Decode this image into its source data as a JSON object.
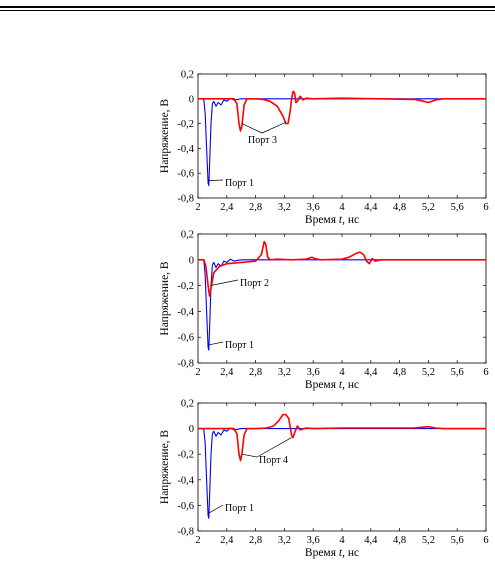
{
  "chart_data": [
    {
      "type": "line",
      "xlabel_prefix": "Время ",
      "xlabel_var": "t",
      "xlabel_suffix": ", нс",
      "ylabel": "Напряжение, В",
      "xlim": [
        2,
        6
      ],
      "ylim": [
        -0.8,
        0.2
      ],
      "xticks": [
        "2",
        "2,4",
        "2,8",
        "3,2",
        "3,6",
        "4",
        "4,4",
        "4,8",
        "5,2",
        "5,6",
        "6"
      ],
      "yticks": [
        "0,2",
        "0",
        "-0,2",
        "-0,4",
        "-0,6",
        "-0,8"
      ],
      "series": [
        {
          "name": "Порт 1",
          "color": "#0000ff",
          "points": [
            [
              2,
              0
            ],
            [
              2.05,
              0
            ],
            [
              2.08,
              -0.005
            ],
            [
              2.1,
              -0.12
            ],
            [
              2.12,
              -0.4
            ],
            [
              2.14,
              -0.68
            ],
            [
              2.15,
              -0.7
            ],
            [
              2.16,
              -0.55
            ],
            [
              2.18,
              -0.2
            ],
            [
              2.2,
              -0.04
            ],
            [
              2.22,
              -0.02
            ],
            [
              2.25,
              -0.06
            ],
            [
              2.28,
              -0.03
            ],
            [
              2.32,
              -0.05
            ],
            [
              2.36,
              -0.01
            ],
            [
              2.4,
              -0.02
            ],
            [
              2.45,
              0.005
            ],
            [
              2.5,
              -0.01
            ],
            [
              2.6,
              0
            ],
            [
              3,
              0
            ],
            [
              4,
              0
            ],
            [
              5,
              0
            ],
            [
              6,
              0
            ]
          ]
        },
        {
          "name": "Порт 3",
          "color": "#ff0000",
          "points": [
            [
              2,
              0
            ],
            [
              2.5,
              0
            ],
            [
              2.54,
              -0.04
            ],
            [
              2.57,
              -0.2
            ],
            [
              2.59,
              -0.26
            ],
            [
              2.61,
              -0.22
            ],
            [
              2.64,
              -0.05
            ],
            [
              2.68,
              0
            ],
            [
              2.8,
              0
            ],
            [
              2.9,
              -0.005
            ],
            [
              3.0,
              -0.02
            ],
            [
              3.1,
              -0.06
            ],
            [
              3.18,
              -0.14
            ],
            [
              3.22,
              -0.2
            ],
            [
              3.25,
              -0.2
            ],
            [
              3.28,
              -0.1
            ],
            [
              3.3,
              0.0
            ],
            [
              3.32,
              0.06
            ],
            [
              3.34,
              0.05
            ],
            [
              3.36,
              -0.03
            ],
            [
              3.38,
              -0.02
            ],
            [
              3.42,
              0.02
            ],
            [
              3.46,
              -0.01
            ],
            [
              3.5,
              0.005
            ],
            [
              3.6,
              0
            ],
            [
              4,
              0.005
            ],
            [
              4.5,
              0
            ],
            [
              5.0,
              -0.005
            ],
            [
              5.1,
              -0.015
            ],
            [
              5.2,
              -0.03
            ],
            [
              5.3,
              -0.01
            ],
            [
              5.4,
              0
            ],
            [
              6,
              0
            ]
          ]
        }
      ],
      "annotations": [
        "Порт 3",
        "Порт 1"
      ]
    },
    {
      "type": "line",
      "xlabel_prefix": "Время ",
      "xlabel_var": "t",
      "xlabel_suffix": ", нс",
      "ylabel": "Напряжение, В",
      "xlim": [
        2,
        6
      ],
      "ylim": [
        -0.8,
        0.2
      ],
      "xticks": [
        "2",
        "2,4",
        "2,8",
        "3,2",
        "3,6",
        "4",
        "4,4",
        "4,8",
        "5,2",
        "5,6",
        "6"
      ],
      "yticks": [
        "0,2",
        "0",
        "-0,2",
        "-0,4",
        "-0,6",
        "-0,8"
      ],
      "series": [
        {
          "name": "Порт 1",
          "color": "#0000ff",
          "points": [
            [
              2,
              0
            ],
            [
              2.05,
              0
            ],
            [
              2.08,
              -0.005
            ],
            [
              2.1,
              -0.12
            ],
            [
              2.12,
              -0.4
            ],
            [
              2.14,
              -0.68
            ],
            [
              2.15,
              -0.7
            ],
            [
              2.16,
              -0.55
            ],
            [
              2.18,
              -0.2
            ],
            [
              2.2,
              -0.04
            ],
            [
              2.22,
              -0.02
            ],
            [
              2.25,
              -0.06
            ],
            [
              2.28,
              -0.03
            ],
            [
              2.32,
              -0.05
            ],
            [
              2.36,
              -0.01
            ],
            [
              2.4,
              -0.02
            ],
            [
              2.45,
              0.005
            ],
            [
              2.5,
              -0.01
            ],
            [
              2.6,
              0
            ],
            [
              3,
              0
            ],
            [
              4,
              0
            ],
            [
              5,
              0
            ],
            [
              6,
              0
            ]
          ]
        },
        {
          "name": "Порт 2",
          "color": "#ff0000",
          "points": [
            [
              2,
              0
            ],
            [
              2.08,
              0
            ],
            [
              2.11,
              -0.05
            ],
            [
              2.14,
              -0.2
            ],
            [
              2.16,
              -0.28
            ],
            [
              2.18,
              -0.22
            ],
            [
              2.22,
              -0.1
            ],
            [
              2.3,
              -0.05
            ],
            [
              2.4,
              -0.03
            ],
            [
              2.6,
              -0.02
            ],
            [
              2.8,
              -0.01
            ],
            [
              2.88,
              0.04
            ],
            [
              2.92,
              0.14
            ],
            [
              2.94,
              0.12
            ],
            [
              2.97,
              0.02
            ],
            [
              3.0,
              0.0
            ],
            [
              3.1,
              0.005
            ],
            [
              3.3,
              0
            ],
            [
              3.5,
              0.005
            ],
            [
              3.58,
              0.02
            ],
            [
              3.62,
              0.01
            ],
            [
              3.7,
              0
            ],
            [
              4.0,
              0.005
            ],
            [
              4.1,
              0.02
            ],
            [
              4.2,
              0.05
            ],
            [
              4.25,
              0.06
            ],
            [
              4.3,
              0.04
            ],
            [
              4.34,
              -0.01
            ],
            [
              4.38,
              -0.03
            ],
            [
              4.42,
              0.01
            ],
            [
              4.46,
              -0.01
            ],
            [
              4.55,
              0
            ],
            [
              6,
              0
            ]
          ]
        }
      ],
      "annotations": [
        "Порт 2",
        "Порт 1"
      ]
    },
    {
      "type": "line",
      "xlabel_prefix": "Время ",
      "xlabel_var": "t",
      "xlabel_suffix": ", нс",
      "ylabel": "Напряжение, В",
      "xlim": [
        2,
        6
      ],
      "ylim": [
        -0.8,
        0.2
      ],
      "xticks": [
        "2",
        "2,4",
        "2,8",
        "3,2",
        "3,6",
        "4",
        "4,4",
        "4,8",
        "5,2",
        "5,6",
        "6"
      ],
      "yticks": [
        "0,2",
        "0",
        "-0,2",
        "-0,4",
        "-0,6",
        "-0,8"
      ],
      "series": [
        {
          "name": "Порт 1",
          "color": "#0000ff",
          "points": [
            [
              2,
              0
            ],
            [
              2.05,
              0
            ],
            [
              2.08,
              -0.005
            ],
            [
              2.1,
              -0.12
            ],
            [
              2.12,
              -0.4
            ],
            [
              2.14,
              -0.68
            ],
            [
              2.15,
              -0.7
            ],
            [
              2.16,
              -0.55
            ],
            [
              2.18,
              -0.2
            ],
            [
              2.2,
              -0.04
            ],
            [
              2.22,
              -0.02
            ],
            [
              2.25,
              -0.06
            ],
            [
              2.28,
              -0.03
            ],
            [
              2.32,
              -0.05
            ],
            [
              2.36,
              -0.01
            ],
            [
              2.4,
              -0.02
            ],
            [
              2.45,
              0.005
            ],
            [
              2.5,
              -0.01
            ],
            [
              2.6,
              0
            ],
            [
              3,
              0
            ],
            [
              4,
              0
            ],
            [
              5,
              0
            ],
            [
              6,
              0
            ]
          ]
        },
        {
          "name": "Порт 4",
          "color": "#ff0000",
          "points": [
            [
              2,
              0
            ],
            [
              2.5,
              0
            ],
            [
              2.54,
              -0.04
            ],
            [
              2.57,
              -0.2
            ],
            [
              2.59,
              -0.25
            ],
            [
              2.61,
              -0.2
            ],
            [
              2.64,
              -0.05
            ],
            [
              2.68,
              0
            ],
            [
              2.8,
              0
            ],
            [
              2.95,
              0.005
            ],
            [
              3.05,
              0.02
            ],
            [
              3.12,
              0.06
            ],
            [
              3.18,
              0.11
            ],
            [
              3.22,
              0.11
            ],
            [
              3.26,
              0.08
            ],
            [
              3.3,
              -0.05
            ],
            [
              3.32,
              -0.07
            ],
            [
              3.35,
              -0.02
            ],
            [
              3.38,
              0.02
            ],
            [
              3.42,
              -0.01
            ],
            [
              3.5,
              0.005
            ],
            [
              3.6,
              0
            ],
            [
              4.0,
              0.005
            ],
            [
              5.0,
              0.005
            ],
            [
              5.1,
              0.01
            ],
            [
              5.2,
              0.015
            ],
            [
              5.3,
              0.005
            ],
            [
              5.4,
              0
            ],
            [
              6,
              0
            ]
          ]
        }
      ],
      "annotations": [
        "Порт 4",
        "Порт 1"
      ]
    }
  ]
}
